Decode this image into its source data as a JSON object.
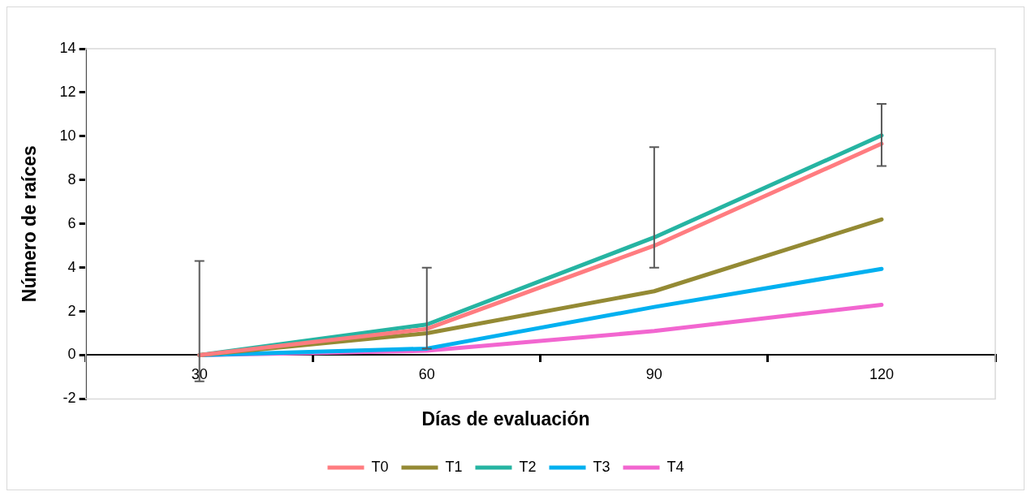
{
  "chart_data": {
    "type": "line",
    "xlabel": "Días de evaluación",
    "ylabel": "Número de raíces",
    "categories": [
      "30",
      "60",
      "90",
      "120"
    ],
    "ylim": [
      -2,
      14
    ],
    "yticks": [
      -2,
      0,
      2,
      4,
      6,
      8,
      10,
      12,
      14
    ],
    "grid": false,
    "legend": "bottom",
    "marker": "none",
    "line_style": "solid",
    "series": [
      {
        "name": "T0",
        "color": "#ff7c80",
        "values": [
          0,
          1.2,
          5.0,
          9.66
        ]
      },
      {
        "name": "T1",
        "color": "#948a34",
        "values": [
          0,
          1.0,
          2.92,
          6.2
        ]
      },
      {
        "name": "T2",
        "color": "#26b4a2",
        "values": [
          0,
          1.4,
          5.38,
          10.04
        ],
        "errors": [
          [
            -1.2,
            4.3
          ],
          [
            0.3,
            4.0
          ],
          [
            4.0,
            9.5
          ],
          [
            8.64,
            11.48
          ]
        ]
      },
      {
        "name": "T3",
        "color": "#00b0f0",
        "values": [
          0,
          0.3,
          2.2,
          3.94
        ]
      },
      {
        "name": "T4",
        "color": "#f266d0",
        "values": [
          0,
          0.2,
          1.1,
          2.3
        ]
      }
    ]
  }
}
